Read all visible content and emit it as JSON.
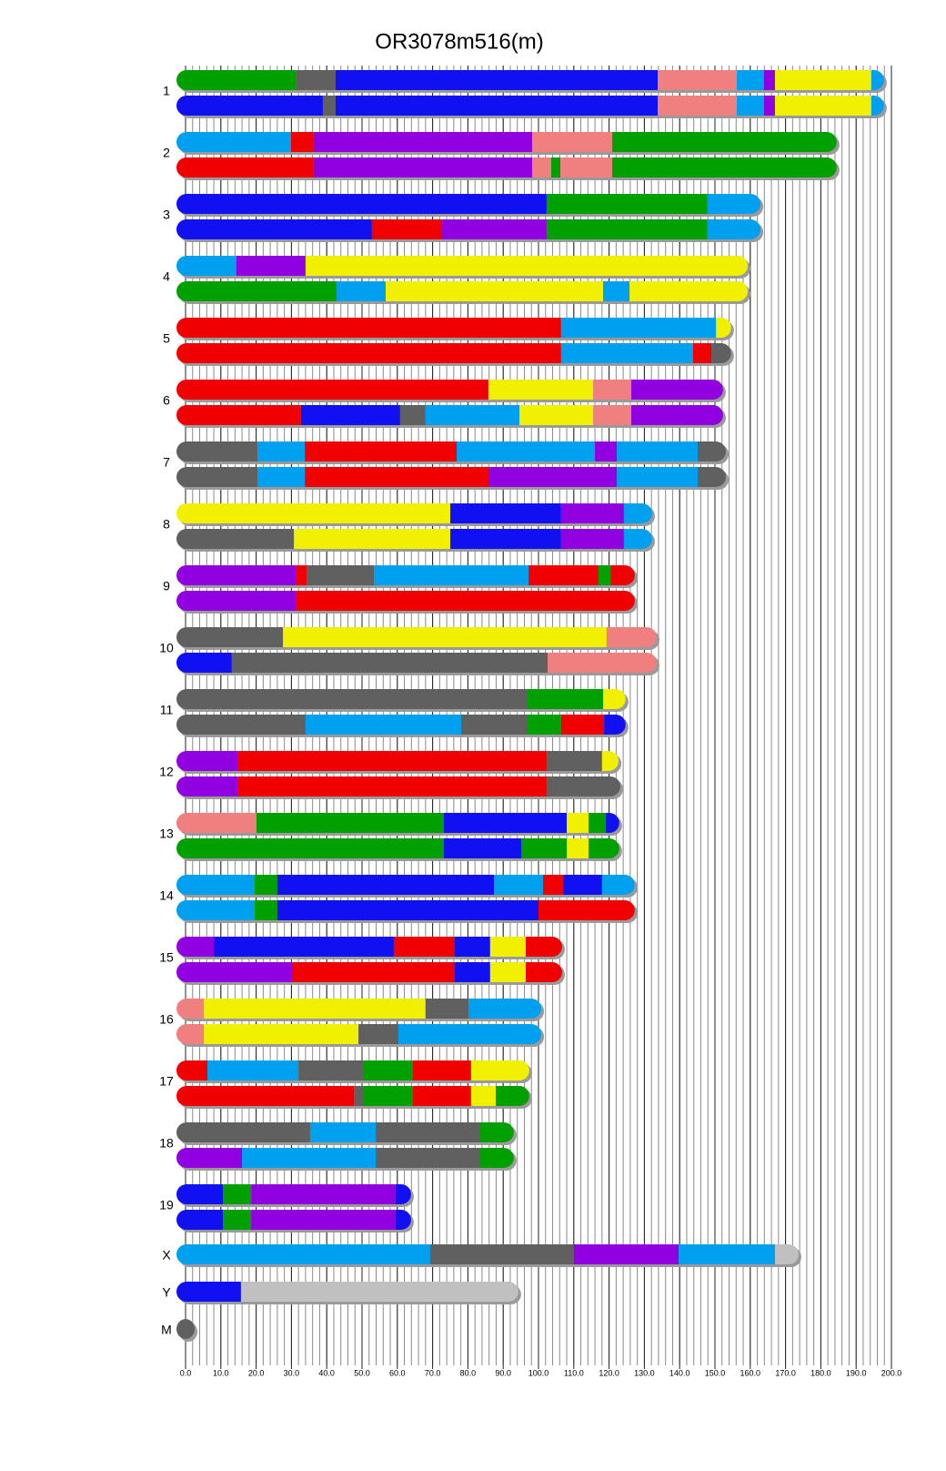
{
  "chart_data": {
    "type": "chromosome",
    "title": "OR3078m516(m)",
    "xlim": [
      0,
      200
    ],
    "xticks": [
      {
        "value": 0,
        "label": "0.0"
      },
      {
        "value": 10,
        "label": "10.0"
      },
      {
        "value": 20,
        "label": "20.0"
      },
      {
        "value": 30,
        "label": "30.0"
      },
      {
        "value": 40,
        "label": "40.0"
      },
      {
        "value": 50,
        "label": "50.0"
      },
      {
        "value": 60,
        "label": "60.0"
      },
      {
        "value": 70,
        "label": "70.0"
      },
      {
        "value": 80,
        "label": "80.0"
      },
      {
        "value": 90,
        "label": "90.0"
      },
      {
        "value": 100,
        "label": "100.0"
      },
      {
        "value": 110,
        "label": "110.0"
      },
      {
        "value": 120,
        "label": "120.0"
      },
      {
        "value": 130,
        "label": "130.0"
      },
      {
        "value": 140,
        "label": "140.0"
      },
      {
        "value": 150,
        "label": "150.0"
      },
      {
        "value": 160,
        "label": "160.0"
      },
      {
        "value": 170,
        "label": "170.0"
      },
      {
        "value": 180,
        "label": "180.0"
      },
      {
        "value": 190,
        "label": "190.0"
      },
      {
        "value": 200,
        "label": "200.0"
      }
    ],
    "minor_xticks": [
      0,
      2,
      4,
      6,
      8,
      10,
      12,
      14,
      16,
      18,
      20,
      22,
      24,
      26,
      28,
      30,
      32,
      34,
      36,
      38,
      40,
      42,
      44,
      46,
      48,
      50,
      52,
      54,
      56,
      58,
      60,
      62,
      64,
      66,
      68,
      70,
      72,
      74,
      76,
      78,
      80,
      82,
      84,
      86,
      88,
      90,
      92,
      94,
      96,
      98,
      100,
      102,
      104,
      106,
      108,
      110,
      112,
      114,
      116,
      118,
      120,
      122,
      124,
      126,
      128,
      130,
      132,
      134,
      136,
      138,
      140,
      142,
      144,
      146,
      148,
      150,
      152,
      154,
      156,
      158,
      160,
      162,
      164,
      166,
      168,
      170,
      172,
      174,
      176,
      178,
      180,
      182,
      184,
      186,
      188,
      190,
      192,
      194,
      196,
      198,
      200
    ],
    "chromosomes": [
      {
        "label": "1",
        "haplotypes": [
          {
            "ends": [
              31.4,
              42.5,
              133.8,
              156.2,
              163.9,
              167,
              194.3,
              197.9
            ],
            "colors": [
              "#00a000",
              "#606060",
              "#1010f0",
              "#f08080",
              "#00a0f0",
              "#9000e0",
              "#f0f000",
              "#00a0f0"
            ]
          },
          {
            "ends": [
              38.9,
              42.5,
              133.8,
              156.2,
              163.9,
              167,
              194.3,
              197.9
            ],
            "colors": [
              "#1010f0",
              "#606060",
              "#1010f0",
              "#f08080",
              "#00a0f0",
              "#9000e0",
              "#f0f000",
              "#00a0f0"
            ]
          }
        ]
      },
      {
        "label": "2",
        "haplotypes": [
          {
            "ends": [
              29.9,
              36.3,
              98.2,
              120.9,
              184.5
            ],
            "colors": [
              "#00a0f0",
              "#f00000",
              "#9000e0",
              "#f08080",
              "#00a000"
            ]
          },
          {
            "ends": [
              36.3,
              98.2,
              103.6,
              106.2,
              120.9,
              184.5
            ],
            "colors": [
              "#f00000",
              "#9000e0",
              "#f08080",
              "#00a000",
              "#f08080",
              "#00a000"
            ]
          }
        ]
      },
      {
        "label": "3",
        "haplotypes": [
          {
            "ends": [
              102.3,
              147.9,
              162.9
            ],
            "colors": [
              "#1010f0",
              "#00a000",
              "#00a0f0"
            ]
          },
          {
            "ends": [
              52.8,
              72.7,
              102.3,
              147.9,
              162.9
            ],
            "colors": [
              "#1010f0",
              "#f00000",
              "#9000e0",
              "#00a000",
              "#00a0f0"
            ]
          }
        ]
      },
      {
        "label": "4",
        "haplotypes": [
          {
            "ends": [
              14.4,
              34,
              159.3
            ],
            "colors": [
              "#00a0f0",
              "#9000e0",
              "#f0f000"
            ]
          },
          {
            "ends": [
              42.8,
              56.7,
              118.3,
              125.8,
              159.3
            ],
            "colors": [
              "#00a000",
              "#00a0f0",
              "#f0f000",
              "#00a0f0",
              "#f0f000"
            ]
          }
        ]
      },
      {
        "label": "5",
        "haplotypes": [
          {
            "ends": [
              106.4,
              150.3,
              154.6
            ],
            "colors": [
              "#f00000",
              "#00a0f0",
              "#f0f000"
            ]
          },
          {
            "ends": [
              106.4,
              143.8,
              149,
              154.6
            ],
            "colors": [
              "#f00000",
              "#00a0f0",
              "#f00000",
              "#606060"
            ]
          }
        ]
      },
      {
        "label": "6",
        "haplotypes": [
          {
            "ends": [
              85.8,
              115.5,
              126.3,
              152.3
            ],
            "colors": [
              "#f00000",
              "#f0f000",
              "#f08080",
              "#9000e0"
            ]
          },
          {
            "ends": [
              32.7,
              60.8,
              68,
              94.6,
              115.5,
              126.3,
              152.3
            ],
            "colors": [
              "#f00000",
              "#1010f0",
              "#606060",
              "#00a0f0",
              "#f0f000",
              "#f08080",
              "#9000e0"
            ]
          }
        ]
      },
      {
        "label": "7",
        "haplotypes": [
          {
            "ends": [
              20.4,
              33.8,
              76.8,
              116,
              122.2,
              145.1,
              153.1
            ],
            "colors": [
              "#606060",
              "#00a0f0",
              "#f00000",
              "#00a0f0",
              "#9000e0",
              "#00a0f0",
              "#606060"
            ]
          },
          {
            "ends": [
              20.4,
              33.8,
              86.1,
              122.2,
              145.1,
              153.1
            ],
            "colors": [
              "#606060",
              "#00a0f0",
              "#f00000",
              "#9000e0",
              "#00a0f0",
              "#606060"
            ]
          }
        ]
      },
      {
        "label": "8",
        "haplotypes": [
          {
            "ends": [
              75,
              106.4,
              124.2,
              132.2
            ],
            "colors": [
              "#f0f000",
              "#1010f0",
              "#9000e0",
              "#00a0f0"
            ]
          },
          {
            "ends": [
              30.7,
              75,
              106.4,
              124.2,
              132.2
            ],
            "colors": [
              "#606060",
              "#f0f000",
              "#1010f0",
              "#9000e0",
              "#00a0f0"
            ]
          }
        ]
      },
      {
        "label": "9",
        "haplotypes": [
          {
            "ends": [
              31.2,
              34.3,
              53.4,
              97.2,
              117,
              120.4,
              127.3
            ],
            "colors": [
              "#9000e0",
              "#f00000",
              "#606060",
              "#00a0f0",
              "#f00000",
              "#00a000",
              "#f00000"
            ]
          },
          {
            "ends": [
              31.2,
              127.3
            ],
            "colors": [
              "#9000e0",
              "#f00000"
            ]
          }
        ]
      },
      {
        "label": "10",
        "haplotypes": [
          {
            "ends": [
              27.6,
              119.3,
              133.5
            ],
            "colors": [
              "#606060",
              "#f0f000",
              "#f08080"
            ]
          },
          {
            "ends": [
              13.1,
              102.6,
              133.5
            ],
            "colors": [
              "#1010f0",
              "#606060",
              "#f08080"
            ]
          }
        ]
      },
      {
        "label": "11",
        "haplotypes": [
          {
            "ends": [
              96.9,
              118.3,
              124.7
            ],
            "colors": [
              "#606060",
              "#00a000",
              "#f0f000"
            ]
          },
          {
            "ends": [
              34,
              78.1,
              96.9,
              106.4,
              118.6,
              124.7
            ],
            "colors": [
              "#606060",
              "#00a0f0",
              "#606060",
              "#00a000",
              "#f00000",
              "#1010f0"
            ]
          }
        ]
      },
      {
        "label": "12",
        "haplotypes": [
          {
            "ends": [
              14.9,
              102.3,
              118,
              122.7
            ],
            "colors": [
              "#9000e0",
              "#f00000",
              "#606060",
              "#f0f000"
            ]
          },
          {
            "ends": [
              14.9,
              102.3,
              123.2
            ],
            "colors": [
              "#9000e0",
              "#f00000",
              "#606060"
            ]
          }
        ]
      },
      {
        "label": "13",
        "haplotypes": [
          {
            "ends": [
              20.1,
              73.2,
              108,
              114.2,
              119.1,
              122.9
            ],
            "colors": [
              "#f08080",
              "#00a000",
              "#1010f0",
              "#f0f000",
              "#00a000",
              "#1010f0"
            ]
          },
          {
            "ends": [
              73.2,
              95.1,
              108,
              114.2,
              122.9
            ],
            "colors": [
              "#00a000",
              "#1010f0",
              "#00a000",
              "#f0f000",
              "#00a000"
            ]
          }
        ]
      },
      {
        "label": "14",
        "haplotypes": [
          {
            "ends": [
              19.6,
              26,
              87.4,
              101.3,
              107,
              118,
              127.3
            ],
            "colors": [
              "#00a0f0",
              "#00a000",
              "#1010f0",
              "#00a0f0",
              "#f00000",
              "#1010f0",
              "#00a0f0"
            ]
          },
          {
            "ends": [
              19.6,
              26,
              100,
              127.3
            ],
            "colors": [
              "#00a0f0",
              "#00a000",
              "#1010f0",
              "#f00000"
            ]
          }
        ]
      },
      {
        "label": "15",
        "haplotypes": [
          {
            "ends": [
              8,
              59,
              76.3,
              86.3,
              96.4,
              106.7
            ],
            "colors": [
              "#9000e0",
              "#1010f0",
              "#f00000",
              "#1010f0",
              "#f0f000",
              "#f00000"
            ]
          },
          {
            "ends": [
              30.4,
              76.3,
              86.3,
              96.4,
              106.7
            ],
            "colors": [
              "#9000e0",
              "#f00000",
              "#1010f0",
              "#f0f000",
              "#f00000"
            ]
          }
        ]
      },
      {
        "label": "16",
        "haplotypes": [
          {
            "ends": [
              5.2,
              68,
              80.2,
              100.8
            ],
            "colors": [
              "#f08080",
              "#f0f000",
              "#606060",
              "#00a0f0"
            ]
          },
          {
            "ends": [
              5.2,
              49,
              60.3,
              100.8
            ],
            "colors": [
              "#f08080",
              "#f0f000",
              "#606060",
              "#00a0f0"
            ]
          }
        ]
      },
      {
        "label": "17",
        "haplotypes": [
          {
            "ends": [
              6.2,
              32,
              50.5,
              64.4,
              80.9,
              97.4
            ],
            "colors": [
              "#f00000",
              "#00a0f0",
              "#606060",
              "#00a000",
              "#f00000",
              "#f0f000"
            ]
          },
          {
            "ends": [
              47.7,
              50.5,
              64.4,
              80.9,
              87.9,
              97.4
            ],
            "colors": [
              "#f00000",
              "#606060",
              "#00a000",
              "#f00000",
              "#f0f000",
              "#00a000"
            ]
          }
        ]
      },
      {
        "label": "18",
        "haplotypes": [
          {
            "ends": [
              35.3,
              53.9,
              83.5,
              93
            ],
            "colors": [
              "#606060",
              "#00a0f0",
              "#606060",
              "#00a000"
            ]
          },
          {
            "ends": [
              16,
              53.9,
              83.5,
              93
            ],
            "colors": [
              "#9000e0",
              "#00a0f0",
              "#606060",
              "#00a000"
            ]
          }
        ]
      },
      {
        "label": "19",
        "haplotypes": [
          {
            "ends": [
              10.6,
              18.6,
              59.5,
              63.9
            ],
            "colors": [
              "#1010f0",
              "#00a000",
              "#9000e0",
              "#1010f0"
            ]
          },
          {
            "ends": [
              10.6,
              18.6,
              59.5,
              63.9
            ],
            "colors": [
              "#1010f0",
              "#00a000",
              "#9000e0",
              "#1010f0"
            ]
          }
        ]
      },
      {
        "label": "X",
        "haplotypes": [
          {
            "ends": [
              69.3,
              110,
              139.7,
              167,
              173.7
            ],
            "colors": [
              "#00a0f0",
              "#606060",
              "#9000e0",
              "#00a0f0",
              "#c0c0c0"
            ]
          }
        ]
      },
      {
        "label": "Y",
        "haplotypes": [
          {
            "ends": [
              15.7,
              94.3
            ],
            "colors": [
              "#1010f0",
              "#c0c0c0"
            ]
          }
        ]
      },
      {
        "label": "M",
        "haplotypes": [
          {
            "ends": [
              0.02
            ],
            "colors": [
              "#606060"
            ]
          }
        ]
      }
    ]
  }
}
